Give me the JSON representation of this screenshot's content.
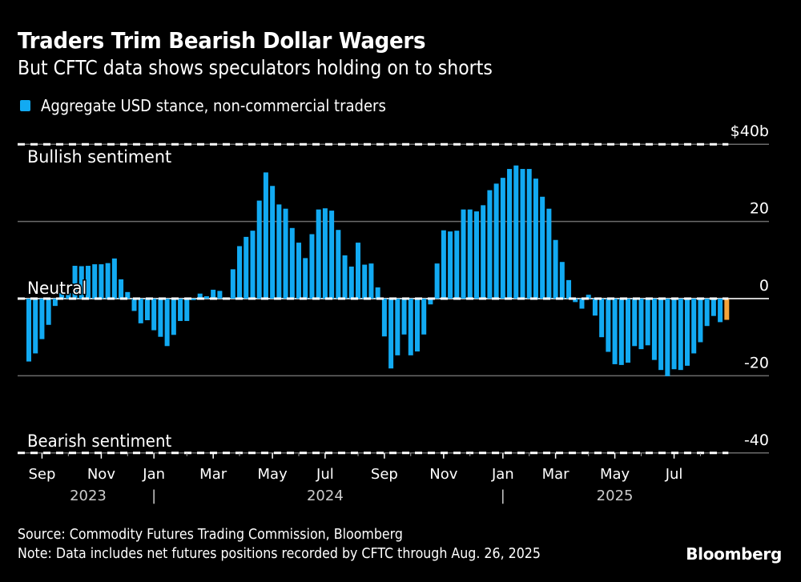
{
  "header": {
    "title": "Traders Trim Bearish Dollar Wagers",
    "subtitle": "But CFTC data shows speculators holding on to shorts"
  },
  "footer": {
    "source": "Source: Commodity Futures Trading Commission, Bloomberg",
    "note": "Note: Data includes net futures positions recorded by CFTC through Aug. 26, 2025",
    "brand": "Bloomberg"
  },
  "colors": {
    "bar": "#12aaf2",
    "latest_bar": "#f6a33a",
    "background": "#000000",
    "grid": "#6b6b6b"
  },
  "chart_data": {
    "type": "bar",
    "title": "Traders Trim Bearish Dollar Wagers",
    "subtitle": "But CFTC data shows speculators holding on to shorts",
    "legend": [
      {
        "name": "Aggregate USD stance, non-commercial traders",
        "color": "#12aaf2"
      }
    ],
    "legend_position": "top-left",
    "xlabel": "",
    "ylabel": "",
    "ylim": [
      -40,
      40
    ],
    "yticks": [
      {
        "value": 40,
        "label": "$40b"
      },
      {
        "value": 20,
        "label": "20"
      },
      {
        "value": 0,
        "label": "0"
      },
      {
        "value": -20,
        "label": "-20"
      },
      {
        "value": -40,
        "label": "-40"
      }
    ],
    "y_axis_side": "right",
    "grid": true,
    "reference_lines": [
      {
        "value": 40,
        "label": "Bullish sentiment",
        "style": "dashed"
      },
      {
        "value": 0,
        "label": "Neutral",
        "style": "dashed"
      },
      {
        "value": -40,
        "label": "Bearish sentiment",
        "style": "dashed"
      }
    ],
    "x_frequency": "weekly",
    "x_start": "2023-08-29",
    "x_end": "2025-08-26",
    "xticks_major": [
      {
        "week_index": 2,
        "label": "Sep"
      },
      {
        "week_index": 11,
        "label": "Nov"
      },
      {
        "week_index": 19,
        "label": "Jan"
      },
      {
        "week_index": 28,
        "label": "Mar"
      },
      {
        "week_index": 37,
        "label": "May"
      },
      {
        "week_index": 45,
        "label": "Jul"
      },
      {
        "week_index": 54,
        "label": "Sep"
      },
      {
        "week_index": 63,
        "label": "Nov"
      },
      {
        "week_index": 72,
        "label": "Jan"
      },
      {
        "week_index": 80,
        "label": "Mar"
      },
      {
        "week_index": 89,
        "label": "May"
      },
      {
        "week_index": 98,
        "label": "Jul"
      }
    ],
    "xticks_minor": [
      6,
      15,
      24,
      32,
      41,
      50,
      58,
      67,
      76,
      85,
      93,
      102
    ],
    "year_labels": [
      {
        "label": "2023",
        "week_index": 9
      },
      {
        "label": "2024",
        "week_index": 45
      },
      {
        "label": "2025",
        "week_index": 89
      }
    ],
    "year_separators": [
      19,
      72
    ],
    "year_separator_glyph": "|",
    "values": [
      -16.3,
      -14.2,
      -10.5,
      -6.8,
      -1.9,
      1.4,
      1.4,
      8.5,
      8.4,
      8.5,
      8.9,
      8.9,
      9.2,
      10.4,
      5.0,
      1.7,
      -3.2,
      -6.4,
      -5.6,
      -8.2,
      -9.9,
      -12.3,
      -9.4,
      -5.8,
      -5.8,
      -0.4,
      1.3,
      0.6,
      2.3,
      2.0,
      0.3,
      7.6,
      13.6,
      16.0,
      17.6,
      25.4,
      32.7,
      29.2,
      24.4,
      23.3,
      18.3,
      14.5,
      10.5,
      16.7,
      23.1,
      23.4,
      22.8,
      17.8,
      11.2,
      8.3,
      14.5,
      8.8,
      9.1,
      2.9,
      -9.8,
      -18.1,
      -14.7,
      -9.3,
      -14.7,
      -13.7,
      -9.3,
      -1.5,
      9.1,
      17.7,
      17.4,
      17.6,
      23.1,
      23.1,
      22.6,
      24.2,
      28.1,
      29.8,
      31.3,
      33.6,
      34.5,
      33.6,
      33.6,
      31.1,
      26.4,
      23.3,
      15.2,
      9.5,
      4.8,
      -0.9,
      -2.6,
      1.0,
      -4.4,
      -10.0,
      -13.8,
      -17.0,
      -17.2,
      -16.6,
      -12.3,
      -13.1,
      -12.1,
      -15.9,
      -18.5,
      -20.1,
      -18.3,
      -18.5,
      -17.4,
      -14.2,
      -11.3,
      -7.1,
      -4.5,
      -6.1,
      -5.5
    ],
    "highlight_last": true,
    "units": "USD billions"
  }
}
